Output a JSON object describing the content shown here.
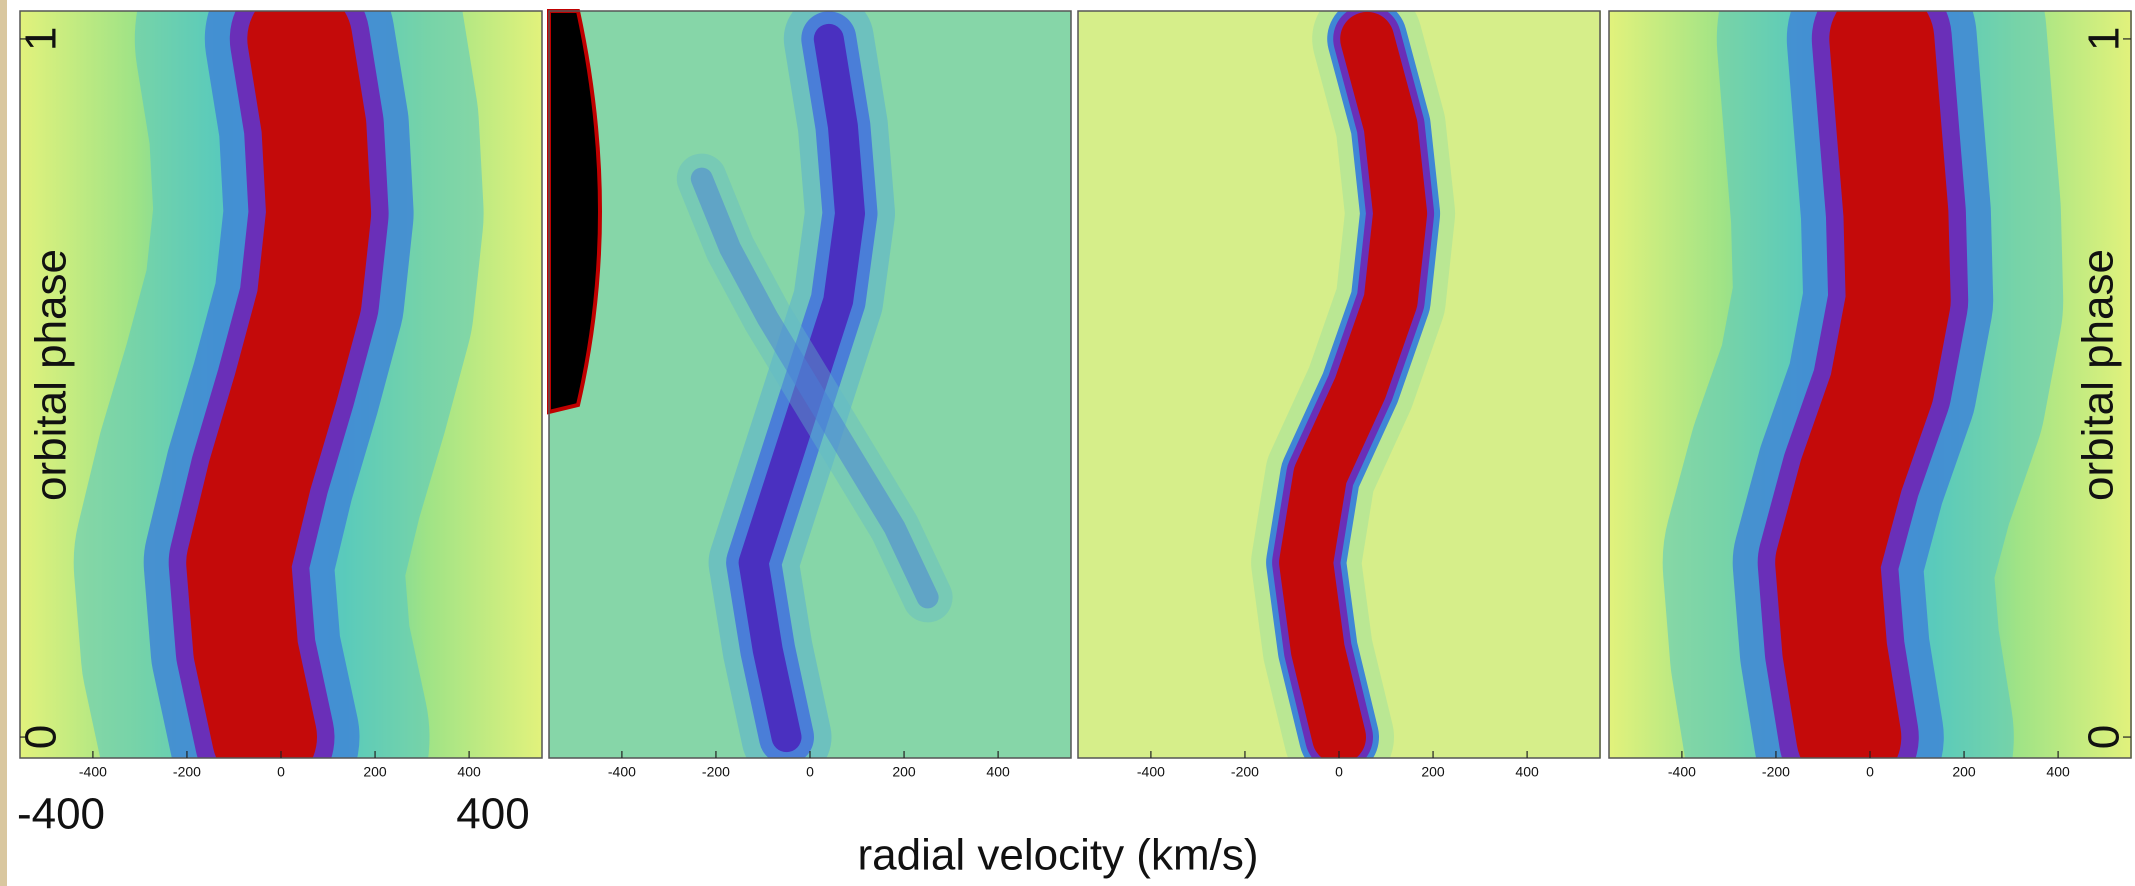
{
  "figure": {
    "xlabel": "radial velocity (km/s)",
    "annotations": [
      "-400",
      "400"
    ]
  },
  "chart_data": [
    {
      "type": "line",
      "xlim": [
        -555,
        555
      ],
      "xticks": [
        -400,
        -200,
        0,
        200,
        400
      ],
      "ylim": [
        -0.03,
        1.04
      ],
      "yticks": [
        0,
        1
      ],
      "ylabel": "orbital phase",
      "ylabel_side": "left",
      "series": [
        {
          "color": "#c40a0a",
          "x": [
            -35,
            -75,
            -90,
            -45,
            10,
            60,
            80,
            70,
            40
          ],
          "values": [
            0,
            0.125,
            0.25,
            0.375,
            0.5,
            0.625,
            0.75,
            0.875,
            1
          ]
        }
      ]
    },
    {
      "type": "line",
      "xlim": [
        -555,
        555
      ],
      "xticks": [
        -400,
        -200,
        0,
        200,
        400
      ],
      "ylim": [
        -0.03,
        1.04
      ],
      "series": [
        {
          "color": "#4a30c0",
          "x": [
            -50,
            -90,
            -120,
            -60,
            0,
            60,
            85,
            70,
            40
          ],
          "values": [
            0,
            0.125,
            0.25,
            0.375,
            0.5,
            0.625,
            0.75,
            0.875,
            1
          ]
        },
        {
          "color": "#5a9ad8",
          "x": [
            250,
            180,
            90,
            0,
            -90,
            -170,
            -230
          ],
          "values": [
            0.2,
            0.3,
            0.4,
            0.5,
            0.6,
            0.7,
            0.8
          ]
        }
      ]
    },
    {
      "type": "line",
      "xlim": [
        -555,
        555
      ],
      "xticks": [
        -400,
        -200,
        0,
        200,
        400
      ],
      "ylim": [
        -0.03,
        1.04
      ],
      "series": [
        {
          "color": "#c40a0a",
          "x": [
            0,
            -45,
            -70,
            -40,
            45,
            110,
            130,
            110,
            60
          ],
          "values": [
            0,
            0.125,
            0.25,
            0.375,
            0.5,
            0.625,
            0.75,
            0.875,
            1
          ]
        }
      ]
    },
    {
      "type": "line",
      "xlim": [
        -555,
        555
      ],
      "xticks": [
        -400,
        -200,
        0,
        200,
        400
      ],
      "ylim": [
        -0.03,
        1.04
      ],
      "yticks": [
        0,
        1
      ],
      "ylabel": "orbital phase",
      "ylabel_side": "right",
      "series": [
        {
          "color": "#c40a0a",
          "x": [
            -45,
            -75,
            -90,
            -40,
            25,
            60,
            55,
            40,
            25
          ],
          "values": [
            0,
            0.125,
            0.25,
            0.375,
            0.5,
            0.625,
            0.75,
            0.875,
            1
          ]
        }
      ]
    }
  ]
}
